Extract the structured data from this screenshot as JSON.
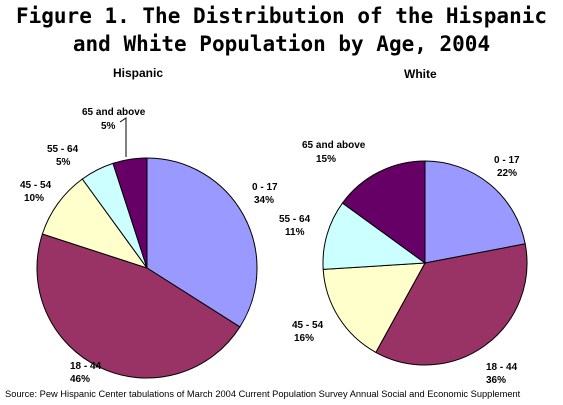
{
  "title_lines": [
    "Figure 1. The Distribution of the Hispanic",
    "and White Population by Age, 2004"
  ],
  "source": "Source: Pew Hispanic Center tabulations of March 2004 Current Population Survey Annual Social and Economic Supplement",
  "colors": {
    "0 - 17": "#9999ff",
    "18 - 44": "#993366",
    "45 - 54": "#ffffcc",
    "55 - 64": "#ccffff",
    "65 and above": "#660066"
  },
  "chart_data": [
    {
      "type": "pie",
      "title": "Hispanic",
      "categories": [
        "0 - 17",
        "18 - 44",
        "45 - 54",
        "55 - 64",
        "65 and above"
      ],
      "values": [
        34,
        46,
        10,
        5,
        5
      ],
      "labels": [
        "34%",
        "46%",
        "10%",
        "5%",
        "5%"
      ],
      "start": "12 o'clock",
      "direction": "clockwise",
      "legend": "none"
    },
    {
      "type": "pie",
      "title": "White",
      "categories": [
        "0 - 17",
        "18 - 44",
        "45 - 54",
        "55 - 64",
        "65 and above"
      ],
      "values": [
        22,
        36,
        16,
        11,
        15
      ],
      "labels": [
        "22%",
        "36%",
        "16%",
        "11%",
        "15%"
      ],
      "start": "12 o'clock",
      "direction": "clockwise",
      "legend": "none"
    }
  ]
}
